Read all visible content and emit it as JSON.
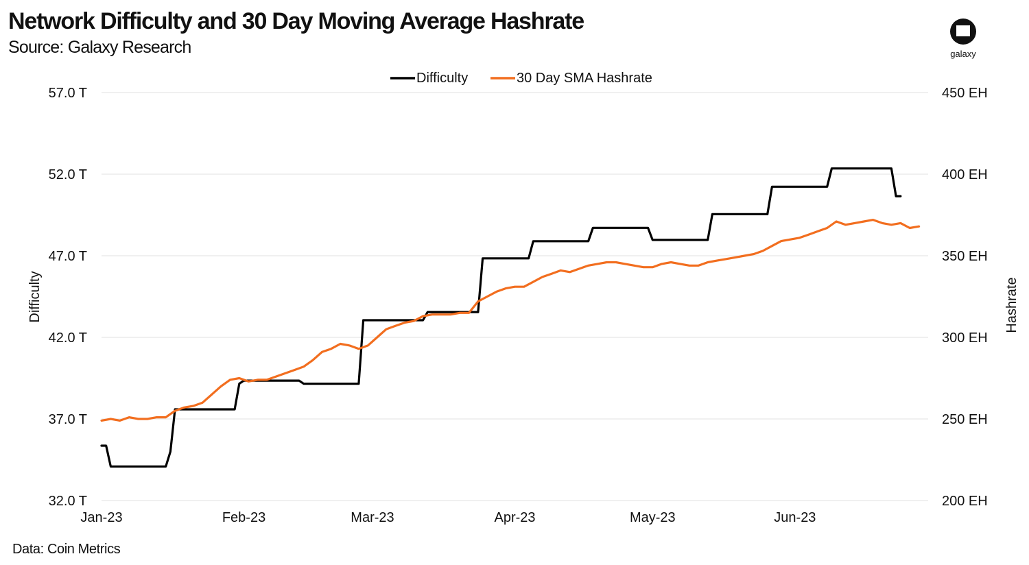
{
  "header": {
    "title": "Network Difficulty and 30 Day Moving Average Hashrate",
    "subtitle": "Source: Galaxy Research"
  },
  "logo": {
    "text": "galaxy",
    "icon": "galaxy-logo-icon"
  },
  "footer": {
    "source": "Data: Coin Metrics"
  },
  "colors": {
    "difficulty": "#000000",
    "hashrate": "#F26E1F",
    "grid": "#e2e2e2"
  },
  "chart_data": {
    "type": "line",
    "title": "Network Difficulty and 30 Day Moving Average Hashrate",
    "x_axis": {
      "ticks": [
        "Jan-23",
        "Feb-23",
        "Mar-23",
        "Apr-23",
        "May-23",
        "Jun-23"
      ],
      "tick_dates": [
        "2023-01-01",
        "2023-02-01",
        "2023-03-01",
        "2023-04-01",
        "2023-05-01",
        "2023-06-01"
      ],
      "range": [
        "2023-01-01",
        "2023-06-30"
      ]
    },
    "y_left": {
      "label": "Difficulty",
      "ticks": [
        "57.0 T",
        "52.0 T",
        "47.0 T",
        "42.0 T",
        "37.0 T",
        "32.0 T"
      ],
      "range": [
        32,
        57
      ]
    },
    "y_right": {
      "label": "Hashrate",
      "ticks": [
        "450 EH",
        "400 EH",
        "350 EH",
        "300 EH",
        "250 EH",
        "200 EH"
      ],
      "range": [
        200,
        450
      ]
    },
    "grid": true,
    "legend_position": "top-center",
    "series": [
      {
        "name": "Difficulty",
        "axis": "left",
        "points": [
          [
            "2023-01-01",
            35.36
          ],
          [
            "2023-01-02",
            35.36
          ],
          [
            "2023-01-03",
            34.09
          ],
          [
            "2023-01-04",
            34.09
          ],
          [
            "2023-01-14",
            34.09
          ],
          [
            "2023-01-15",
            34.09
          ],
          [
            "2023-01-16",
            35.0
          ],
          [
            "2023-01-17",
            37.59
          ],
          [
            "2023-01-30",
            37.59
          ],
          [
            "2023-01-31",
            39.16
          ],
          [
            "2023-02-01",
            39.35
          ],
          [
            "2023-02-13",
            39.35
          ],
          [
            "2023-02-14",
            39.16
          ],
          [
            "2023-02-26",
            39.16
          ],
          [
            "2023-02-27",
            43.05
          ],
          [
            "2023-03-12",
            43.05
          ],
          [
            "2023-03-13",
            43.55
          ],
          [
            "2023-03-24",
            43.55
          ],
          [
            "2023-03-25",
            46.84
          ],
          [
            "2023-04-04",
            46.84
          ],
          [
            "2023-04-05",
            47.89
          ],
          [
            "2023-04-17",
            47.89
          ],
          [
            "2023-04-18",
            48.71
          ],
          [
            "2023-04-30",
            48.71
          ],
          [
            "2023-05-01",
            47.97
          ],
          [
            "2023-05-13",
            47.97
          ],
          [
            "2023-05-14",
            49.55
          ],
          [
            "2023-05-26",
            49.55
          ],
          [
            "2023-05-27",
            51.23
          ],
          [
            "2023-06-08",
            51.23
          ],
          [
            "2023-06-09",
            52.35
          ],
          [
            "2023-06-22",
            52.35
          ],
          [
            "2023-06-23",
            50.65
          ],
          [
            "2023-06-24",
            50.65
          ]
        ]
      },
      {
        "name": "30 Day SMA Hashrate",
        "axis": "right",
        "points": [
          [
            "2023-01-01",
            249
          ],
          [
            "2023-01-03",
            250
          ],
          [
            "2023-01-05",
            249
          ],
          [
            "2023-01-07",
            251
          ],
          [
            "2023-01-09",
            250
          ],
          [
            "2023-01-11",
            250
          ],
          [
            "2023-01-13",
            251
          ],
          [
            "2023-01-15",
            251
          ],
          [
            "2023-01-17",
            255
          ],
          [
            "2023-01-19",
            257
          ],
          [
            "2023-01-21",
            258
          ],
          [
            "2023-01-23",
            260
          ],
          [
            "2023-01-25",
            265
          ],
          [
            "2023-01-27",
            270
          ],
          [
            "2023-01-29",
            274
          ],
          [
            "2023-01-31",
            275
          ],
          [
            "2023-02-02",
            273
          ],
          [
            "2023-02-04",
            274
          ],
          [
            "2023-02-06",
            274
          ],
          [
            "2023-02-08",
            276
          ],
          [
            "2023-02-10",
            278
          ],
          [
            "2023-02-12",
            280
          ],
          [
            "2023-02-14",
            282
          ],
          [
            "2023-02-16",
            286
          ],
          [
            "2023-02-18",
            291
          ],
          [
            "2023-02-20",
            293
          ],
          [
            "2023-02-22",
            296
          ],
          [
            "2023-02-24",
            295
          ],
          [
            "2023-02-26",
            293
          ],
          [
            "2023-02-28",
            295
          ],
          [
            "2023-03-02",
            300
          ],
          [
            "2023-03-04",
            305
          ],
          [
            "2023-03-06",
            307
          ],
          [
            "2023-03-08",
            309
          ],
          [
            "2023-03-10",
            310
          ],
          [
            "2023-03-12",
            313
          ],
          [
            "2023-03-14",
            314
          ],
          [
            "2023-03-16",
            314
          ],
          [
            "2023-03-18",
            314
          ],
          [
            "2023-03-20",
            315
          ],
          [
            "2023-03-22",
            315
          ],
          [
            "2023-03-24",
            322
          ],
          [
            "2023-03-26",
            325
          ],
          [
            "2023-03-28",
            328
          ],
          [
            "2023-03-30",
            330
          ],
          [
            "2023-04-01",
            331
          ],
          [
            "2023-04-03",
            331
          ],
          [
            "2023-04-05",
            334
          ],
          [
            "2023-04-07",
            337
          ],
          [
            "2023-04-09",
            339
          ],
          [
            "2023-04-11",
            341
          ],
          [
            "2023-04-13",
            340
          ],
          [
            "2023-04-15",
            342
          ],
          [
            "2023-04-17",
            344
          ],
          [
            "2023-04-19",
            345
          ],
          [
            "2023-04-21",
            346
          ],
          [
            "2023-04-23",
            346
          ],
          [
            "2023-04-25",
            345
          ],
          [
            "2023-04-27",
            344
          ],
          [
            "2023-04-29",
            343
          ],
          [
            "2023-05-01",
            343
          ],
          [
            "2023-05-03",
            345
          ],
          [
            "2023-05-05",
            346
          ],
          [
            "2023-05-07",
            345
          ],
          [
            "2023-05-09",
            344
          ],
          [
            "2023-05-11",
            344
          ],
          [
            "2023-05-13",
            346
          ],
          [
            "2023-05-15",
            347
          ],
          [
            "2023-05-17",
            348
          ],
          [
            "2023-05-19",
            349
          ],
          [
            "2023-05-21",
            350
          ],
          [
            "2023-05-23",
            351
          ],
          [
            "2023-05-25",
            353
          ],
          [
            "2023-05-27",
            356
          ],
          [
            "2023-05-29",
            359
          ],
          [
            "2023-05-31",
            360
          ],
          [
            "2023-06-02",
            361
          ],
          [
            "2023-06-04",
            363
          ],
          [
            "2023-06-06",
            365
          ],
          [
            "2023-06-08",
            367
          ],
          [
            "2023-06-10",
            371
          ],
          [
            "2023-06-12",
            369
          ],
          [
            "2023-06-14",
            370
          ],
          [
            "2023-06-16",
            371
          ],
          [
            "2023-06-18",
            372
          ],
          [
            "2023-06-20",
            370
          ],
          [
            "2023-06-22",
            369
          ],
          [
            "2023-06-24",
            370
          ],
          [
            "2023-06-26",
            367
          ],
          [
            "2023-06-28",
            368
          ]
        ]
      }
    ]
  }
}
